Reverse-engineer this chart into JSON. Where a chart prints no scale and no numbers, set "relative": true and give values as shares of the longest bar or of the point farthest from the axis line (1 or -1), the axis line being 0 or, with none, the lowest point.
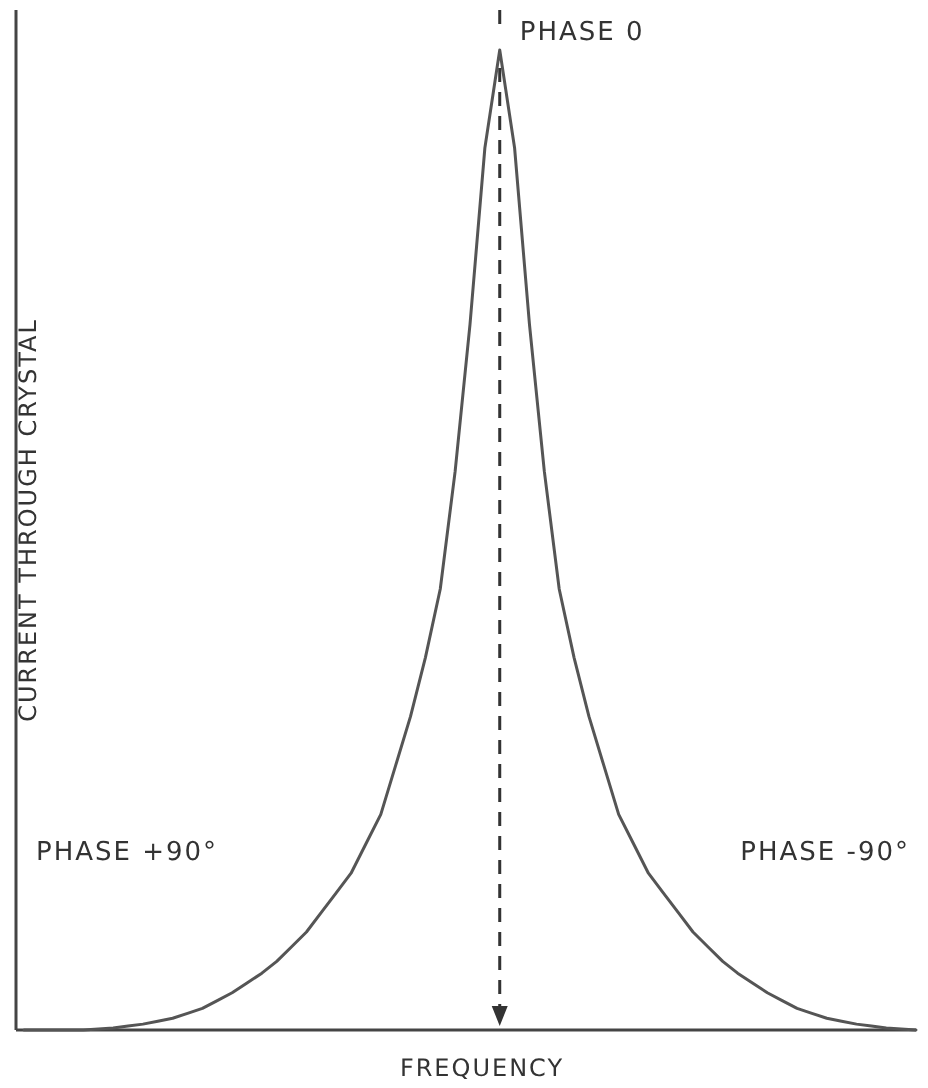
{
  "chart_data": {
    "type": "line",
    "relative": true,
    "xlabel": "FREQUENCY",
    "ylabel": "CURRENT THROUGH CRYSTAL",
    "marker": "none",
    "line_style": "solid",
    "categories": [
      null,
      null,
      null,
      null,
      null,
      null,
      null,
      null,
      null,
      null,
      null,
      null,
      null,
      null,
      null,
      null,
      null,
      null,
      null,
      null,
      null,
      null,
      null,
      null,
      null,
      null,
      null,
      null,
      null,
      null,
      null,
      null,
      null,
      null,
      null,
      null,
      null,
      null,
      null,
      null,
      null,
      null,
      null,
      null,
      null,
      null,
      null,
      null,
      null,
      null,
      null,
      null,
      null,
      null,
      null,
      null,
      null,
      null,
      null,
      null,
      null
    ],
    "series": [
      {
        "color": "#555555",
        "values": [
          0,
          0,
          0,
          0,
          0,
          0.001,
          0.002,
          0.004,
          0.006,
          0.009,
          0.012,
          0.017,
          0.022,
          0.03,
          0.038,
          0.048,
          0.058,
          0.07,
          0.085,
          0.1,
          0.12,
          0.14,
          0.16,
          0.19,
          0.22,
          0.27,
          0.32,
          0.38,
          0.45,
          0.57,
          0.72,
          0.9,
          1,
          0.9,
          0.72,
          0.57,
          0.45,
          0.38,
          0.32,
          0.27,
          0.22,
          0.19,
          0.16,
          0.14,
          0.12,
          0.1,
          0.085,
          0.07,
          0.058,
          0.048,
          0.038,
          0.03,
          0.022,
          0.017,
          0.012,
          0.009,
          0.006,
          0.004,
          0.002,
          0.001,
          0
        ]
      }
    ],
    "annotations": [
      "PHASE 0",
      "PHASE +90°",
      "PHASE -90°"
    ]
  }
}
